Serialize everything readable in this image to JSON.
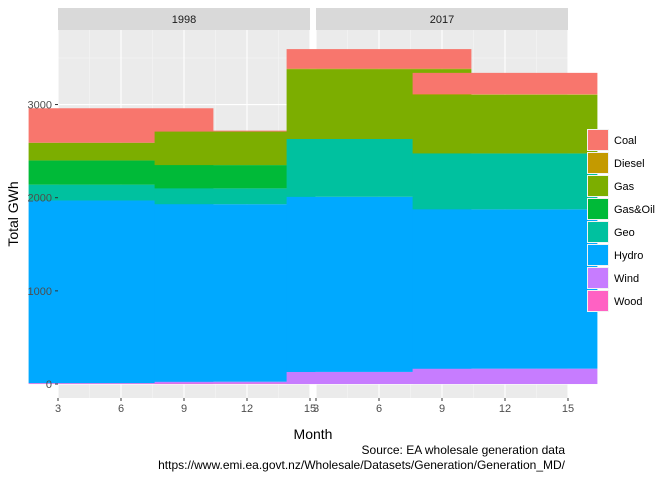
{
  "chart_data": {
    "type": "bar",
    "stacked": true,
    "facets": [
      "1998",
      "2017"
    ],
    "xlabel": "Month",
    "ylabel": "Total GWh",
    "xlim": [
      3,
      15
    ],
    "xticks": [
      3,
      6,
      9,
      12,
      15
    ],
    "ylim": [
      -150,
      3800
    ],
    "yticks": [
      0,
      1000,
      2000,
      3000
    ],
    "legend_position": "right",
    "legend": [
      {
        "name": "Coal",
        "color": "#F8766D"
      },
      {
        "name": "Diesel",
        "color": "#C49A00"
      },
      {
        "name": "Gas",
        "color": "#7CAE00"
      },
      {
        "name": "Gas&Oil",
        "color": "#00BA38"
      },
      {
        "name": "Geo",
        "color": "#00C19F"
      },
      {
        "name": "Hydro",
        "color": "#00A9FF"
      },
      {
        "name": "Wind",
        "color": "#C77CFF"
      },
      {
        "name": "Wood",
        "color": "#FF61C3"
      }
    ],
    "bar_months": [
      6,
      12
    ],
    "values": {
      "1998": {
        "6": {
          "Wood": 5,
          "Wind": 5,
          "Hydro": 1960,
          "Geo": 170,
          "Gas&Oil": 260,
          "Gas": 190,
          "Diesel": 0,
          "Coal": 370
        },
        "12": {
          "Wood": 5,
          "Wind": 20,
          "Hydro": 1905,
          "Geo": 170,
          "Gas&Oil": 250,
          "Gas": 360,
          "Diesel": 0,
          "Coal": 10
        }
      },
      "2017": {
        "6": {
          "Wood": 0,
          "Wind": 130,
          "Hydro": 1880,
          "Geo": 620,
          "Gas&Oil": 0,
          "Gas": 750,
          "Diesel": 5,
          "Coal": 210
        },
        "12": {
          "Wood": 0,
          "Wind": 165,
          "Hydro": 1710,
          "Geo": 600,
          "Gas&Oil": 0,
          "Gas": 630,
          "Diesel": 5,
          "Coal": 230
        }
      }
    }
  },
  "caption": {
    "line1": "Source: EA wholesale generation data",
    "line2": "https://www.emi.ea.govt.nz/Wholesale/Datasets/Generation/Generation_MD/"
  }
}
